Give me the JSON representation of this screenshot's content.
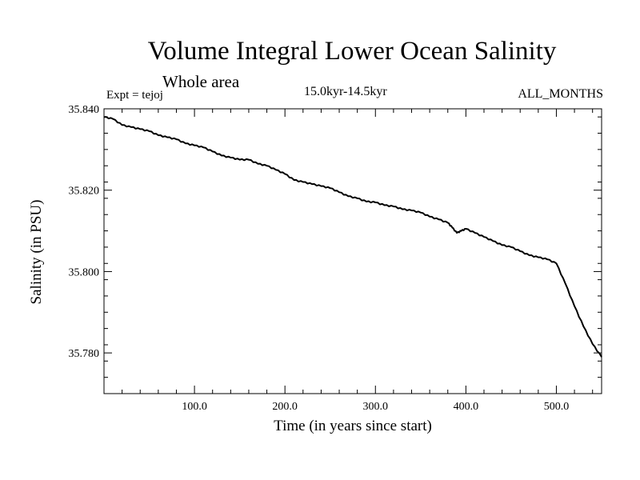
{
  "chart_data": {
    "type": "line",
    "title": "Volume Integral Lower Ocean Salinity",
    "subtitle": "Whole area",
    "experiment": "Expt = tejoj",
    "period": "15.0kyr-14.5kyr",
    "months": "ALL_MONTHS",
    "xlabel": "Time (in years since start)",
    "ylabel": "Salinity (in PSU)",
    "xlim": [
      0,
      550
    ],
    "ylim": [
      35.77,
      35.84
    ],
    "xticks": [
      100,
      200,
      300,
      400,
      500
    ],
    "xtick_labels": [
      "100.0",
      "200.0",
      "300.0",
      "400.0",
      "500.0"
    ],
    "yticks": [
      35.84,
      35.82,
      35.8,
      35.78
    ],
    "ytick_labels": [
      "35.840",
      "35.820",
      "35.800",
      "35.780"
    ],
    "series": [
      {
        "name": "Salinity",
        "x": [
          0,
          10,
          20,
          30,
          40,
          50,
          60,
          70,
          80,
          90,
          100,
          110,
          120,
          130,
          140,
          150,
          160,
          170,
          180,
          190,
          200,
          210,
          220,
          230,
          240,
          250,
          260,
          270,
          280,
          290,
          300,
          310,
          320,
          330,
          340,
          350,
          360,
          370,
          380,
          385,
          390,
          395,
          400,
          410,
          420,
          430,
          440,
          450,
          460,
          470,
          480,
          490,
          500,
          510,
          520,
          530,
          540,
          550
        ],
        "y": [
          35.838,
          35.8375,
          35.836,
          35.8355,
          35.835,
          35.8345,
          35.8335,
          35.833,
          35.8325,
          35.8315,
          35.831,
          35.8305,
          35.8295,
          35.8285,
          35.828,
          35.8275,
          35.8275,
          35.8265,
          35.826,
          35.825,
          35.824,
          35.8225,
          35.822,
          35.8215,
          35.821,
          35.8205,
          35.8195,
          35.8185,
          35.818,
          35.8172,
          35.817,
          35.8163,
          35.816,
          35.8153,
          35.815,
          35.8145,
          35.8135,
          35.8128,
          35.812,
          35.8108,
          35.8095,
          35.81,
          35.8105,
          35.8095,
          35.8085,
          35.8075,
          35.8065,
          35.806,
          35.805,
          35.804,
          35.8035,
          35.803,
          35.802,
          35.797,
          35.7915,
          35.7865,
          35.7822,
          35.779
        ]
      }
    ]
  }
}
